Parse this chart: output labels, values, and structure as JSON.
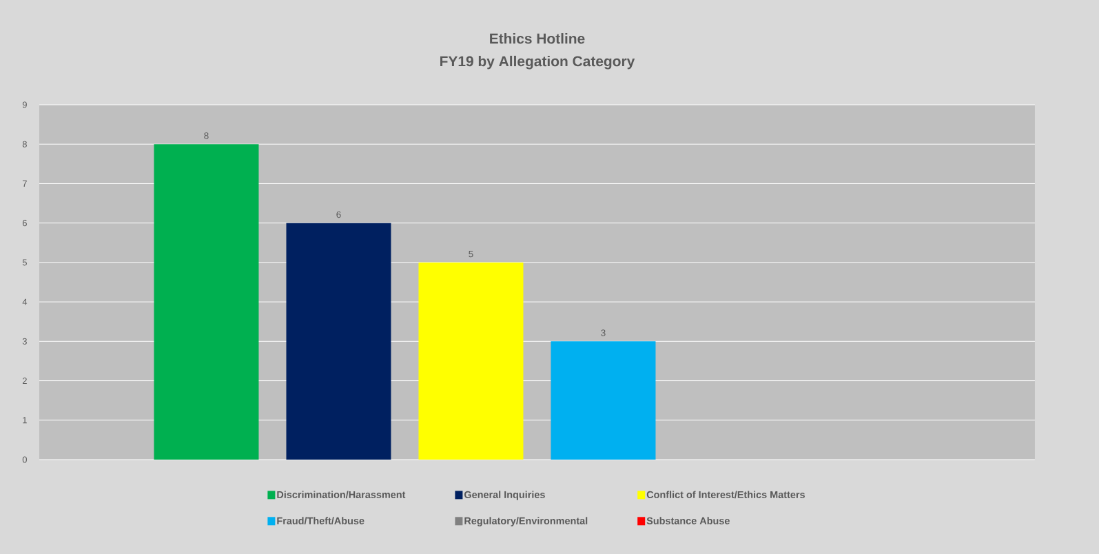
{
  "chart_data": {
    "type": "bar",
    "title": "Ethics Hotline",
    "subtitle": "FY19 by Allegation Category",
    "categories": [
      null
    ],
    "series": [
      {
        "name": "Discrimination/Harassment",
        "color": "#00b050",
        "values": [
          8
        ],
        "value_labels": [
          "8"
        ]
      },
      {
        "name": "General Inquiries",
        "color": "#002060",
        "values": [
          6
        ],
        "value_labels": [
          "6"
        ]
      },
      {
        "name": "Conflict of Interest/Ethics Matters",
        "color": "#ffff00",
        "values": [
          5
        ],
        "value_labels": [
          "5"
        ]
      },
      {
        "name": "Fraud/Theft/Abuse",
        "color": "#00b0f0",
        "values": [
          3
        ],
        "value_labels": [
          "3"
        ]
      },
      {
        "name": "Regulatory/Environmental",
        "color": "#808080",
        "values": [
          0
        ],
        "value_labels": [
          null
        ]
      },
      {
        "name": "Substance Abuse",
        "color": "#ff0000",
        "values": [
          0
        ],
        "value_labels": [
          null
        ]
      }
    ],
    "ylim": [
      0,
      9
    ],
    "yticks": [
      0,
      1,
      2,
      3,
      4,
      5,
      6,
      7,
      8,
      9
    ],
    "grid": "y",
    "legend": "bottom",
    "tick_labels": "y"
  }
}
